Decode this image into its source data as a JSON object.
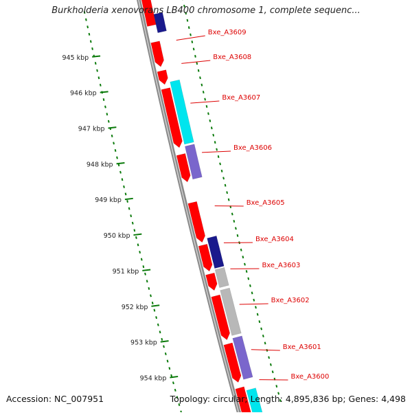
{
  "title": "Burkholderia xenovorans LB400 chromosome 1, complete sequenc...",
  "footer": {
    "accession": "Accession: NC_007951",
    "summary": "Topology: circular; Length: 4,895,836 bp; Genes: 4,498"
  },
  "colors": {
    "forward_gene": "#ff0000",
    "cyan_feature": "#00e5ee",
    "purple_feature": "#7a66cc",
    "navy_feature": "#1a1a8c",
    "gray_feature": "#b8b8b8",
    "backbone": "#8a8a8a",
    "tick_green": "#0a7a0a",
    "label_red": "#dd0000"
  },
  "ruler_ticks": [
    {
      "label": "945 kbp"
    },
    {
      "label": "946 kbp"
    },
    {
      "label": "947 kbp"
    },
    {
      "label": "948 kbp"
    },
    {
      "label": "949 kbp"
    },
    {
      "label": "950 kbp"
    },
    {
      "label": "951 kbp"
    },
    {
      "label": "952 kbp"
    },
    {
      "label": "953 kbp"
    },
    {
      "label": "954 kbp"
    }
  ],
  "gene_labels": [
    {
      "name": "Bxe_A3609"
    },
    {
      "name": "Bxe_A3608"
    },
    {
      "name": "Bxe_A3607"
    },
    {
      "name": "Bxe_A3606"
    },
    {
      "name": "Bxe_A3605"
    },
    {
      "name": "Bxe_A3604"
    },
    {
      "name": "Bxe_A3603"
    },
    {
      "name": "Bxe_A3602"
    },
    {
      "name": "Bxe_A3601"
    },
    {
      "name": "Bxe_A3600"
    }
  ]
}
